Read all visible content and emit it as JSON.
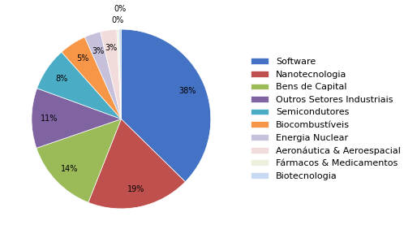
{
  "chart_data": {
    "type": "pie",
    "categories": [
      "Software",
      "Nanotecnologia",
      "Bens de Capital",
      "Outros Setores Industriais",
      "Semicondutores",
      "Biocombustíveis",
      "Energia Nuclear",
      "Aeronáutica & Aeroespacial",
      "Fármacos & Medicamentos",
      "Biotecnologia"
    ],
    "values": [
      38,
      19,
      14,
      11,
      8,
      5,
      3,
      3,
      0.4,
      0.4
    ],
    "value_labels": [
      "38%",
      "19%",
      "14%",
      "11%",
      "8%",
      "5%",
      "3%",
      "3%",
      "0%",
      "0%"
    ],
    "colors": [
      "#4472C4",
      "#C0504D",
      "#9BBB59",
      "#8064A2",
      "#4BACC6",
      "#F79646",
      "#C6C0DA",
      "#F2DCDB",
      "#EBF1DD",
      "#C6D9F1"
    ],
    "legend": "center left"
  }
}
